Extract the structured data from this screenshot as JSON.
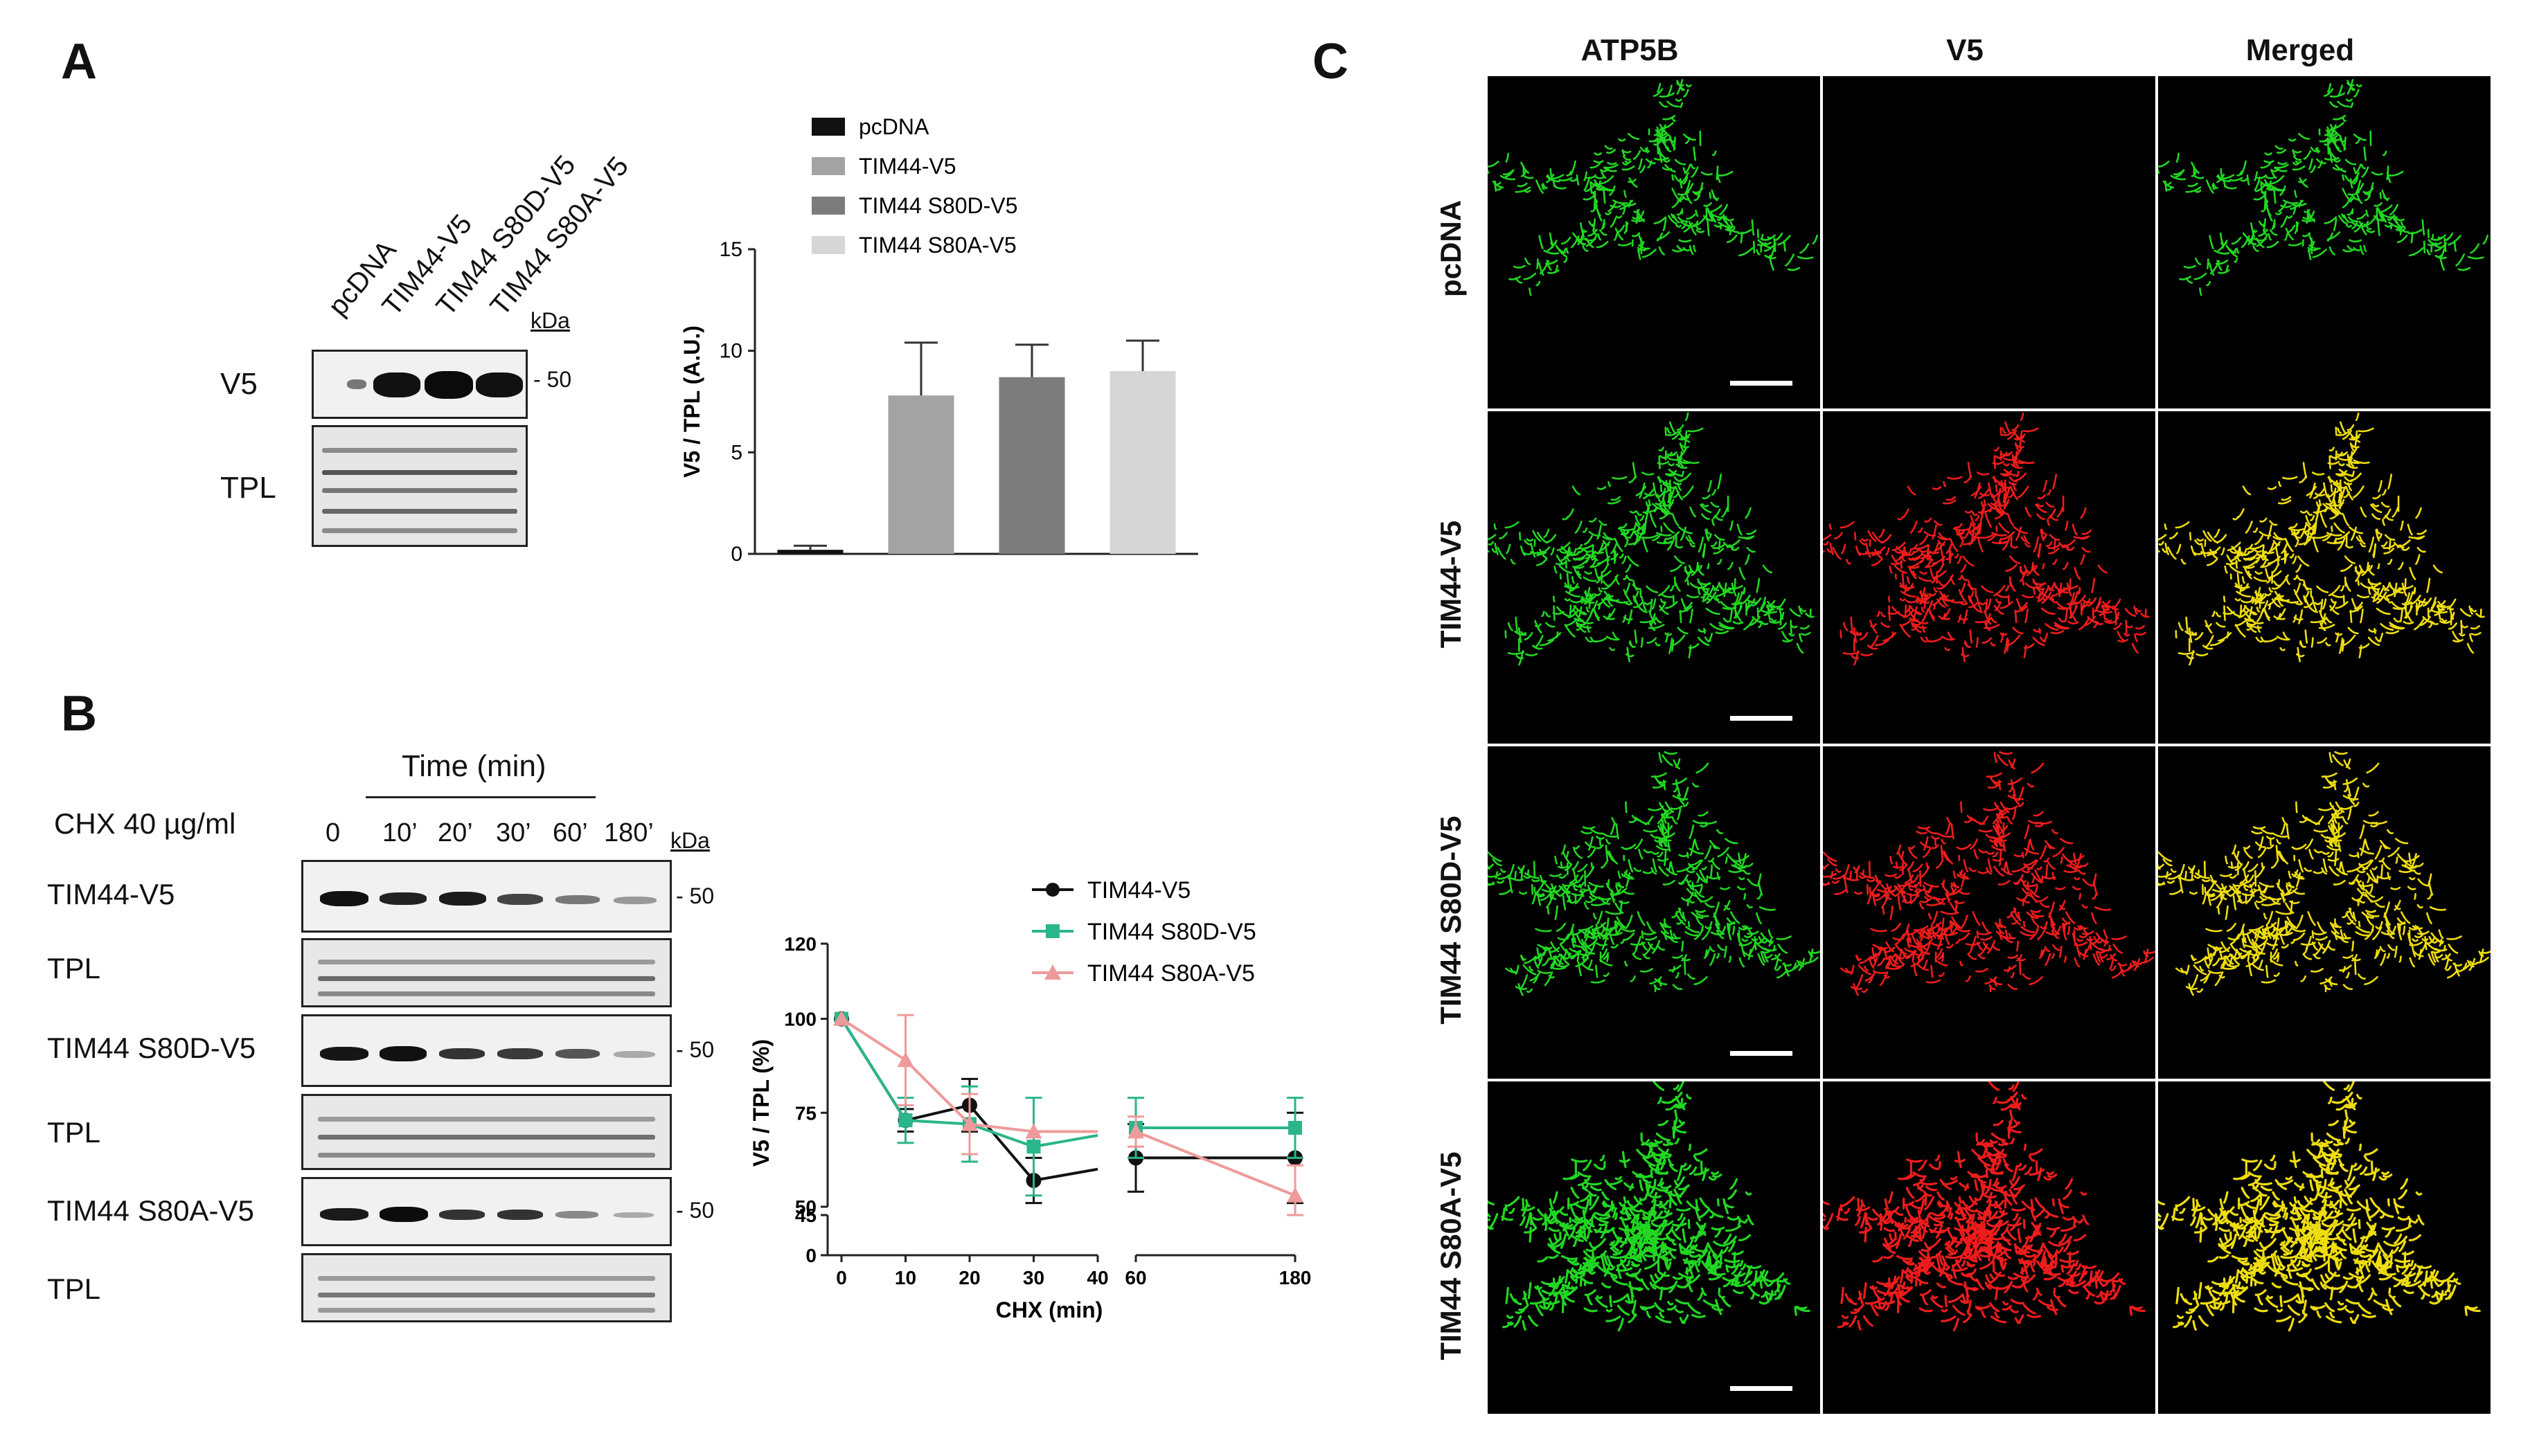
{
  "panels": {
    "a": "A",
    "b": "B",
    "c": "C"
  },
  "panel_a": {
    "lanes": [
      "pcDNA",
      "TIM44-V5",
      "TIM44 S80D-V5",
      "TIM44 S80A-V5"
    ],
    "kda": "kDa",
    "rows": [
      {
        "label": "V5",
        "marker": "- 50"
      },
      {
        "label": "TPL",
        "marker": ""
      }
    ]
  },
  "panel_b": {
    "time_header": "Time (min)",
    "treatment": "CHX 40 µg/ml",
    "timepoints": [
      "0",
      "10’",
      "20’",
      "30’",
      "60’",
      "180’"
    ],
    "kda": "kDa",
    "rows": [
      {
        "label": "TIM44-V5",
        "marker": "- 50"
      },
      {
        "label": "TPL",
        "marker": ""
      },
      {
        "label": "TIM44 S80D-V5",
        "marker": "- 50"
      },
      {
        "label": "TPL",
        "marker": ""
      },
      {
        "label": "TIM44 S80A-V5",
        "marker": "- 50"
      },
      {
        "label": "TPL",
        "marker": ""
      }
    ]
  },
  "panel_c": {
    "columns": [
      "ATP5B",
      "V5",
      "Merged"
    ],
    "rows": [
      "pcDNA",
      "TIM44-V5",
      "TIM44 S80D-V5",
      "TIM44 S80A-V5"
    ],
    "colors": {
      "green": "#22d622",
      "red": "#ee1c1c",
      "yellow": "#eedd10"
    }
  },
  "chart_data": [
    {
      "type": "bar",
      "categories": [
        "pcDNA",
        "TIM44-V5",
        "TIM44 S80D-V5",
        "TIM44 S80A-V5"
      ],
      "values": [
        0.2,
        7.8,
        8.7,
        9.0
      ],
      "errors": [
        0.2,
        2.6,
        1.6,
        1.5
      ],
      "colors": [
        "#111111",
        "#a3a3a3",
        "#7c7c7c",
        "#d6d6d6"
      ],
      "legend": [
        "pcDNA",
        "TIM44-V5",
        "TIM44 S80D-V5",
        "TIM44 S80A-V5"
      ],
      "ylabel": "V5 / TPL (A.U.)",
      "ylim": [
        0,
        15
      ],
      "yticks": [
        "0",
        "5",
        "10",
        "15"
      ]
    },
    {
      "type": "line",
      "x": [
        0,
        10,
        20,
        30,
        60,
        180
      ],
      "xticks": [
        "0",
        "10",
        "20",
        "30",
        "40",
        "60",
        "180"
      ],
      "xlabel": "CHX (min)",
      "ylabel": "V5 / TPL (%)",
      "yticks": [
        "0",
        "45",
        "50",
        "75",
        "100",
        "120"
      ],
      "axis_break": {
        "x": [
          40,
          60
        ],
        "y": [
          0,
          45
        ]
      },
      "series": [
        {
          "name": "TIM44-V5",
          "color": "#111111",
          "marker": "circle",
          "values": [
            100,
            73,
            77,
            57,
            63,
            63
          ],
          "errors": [
            0,
            3,
            7,
            6,
            9,
            12
          ]
        },
        {
          "name": "TIM44 S80D-V5",
          "color": "#2bb58a",
          "marker": "square",
          "values": [
            100,
            73,
            72,
            66,
            71,
            71
          ],
          "errors": [
            0,
            6,
            10,
            13,
            8,
            8
          ]
        },
        {
          "name": "TIM44 S80A-V5",
          "color": "#ef9a9a",
          "marker": "triangle",
          "values": [
            100,
            89,
            72,
            70,
            70,
            53
          ],
          "errors": [
            0,
            12,
            8,
            0,
            4,
            8
          ]
        }
      ]
    }
  ]
}
